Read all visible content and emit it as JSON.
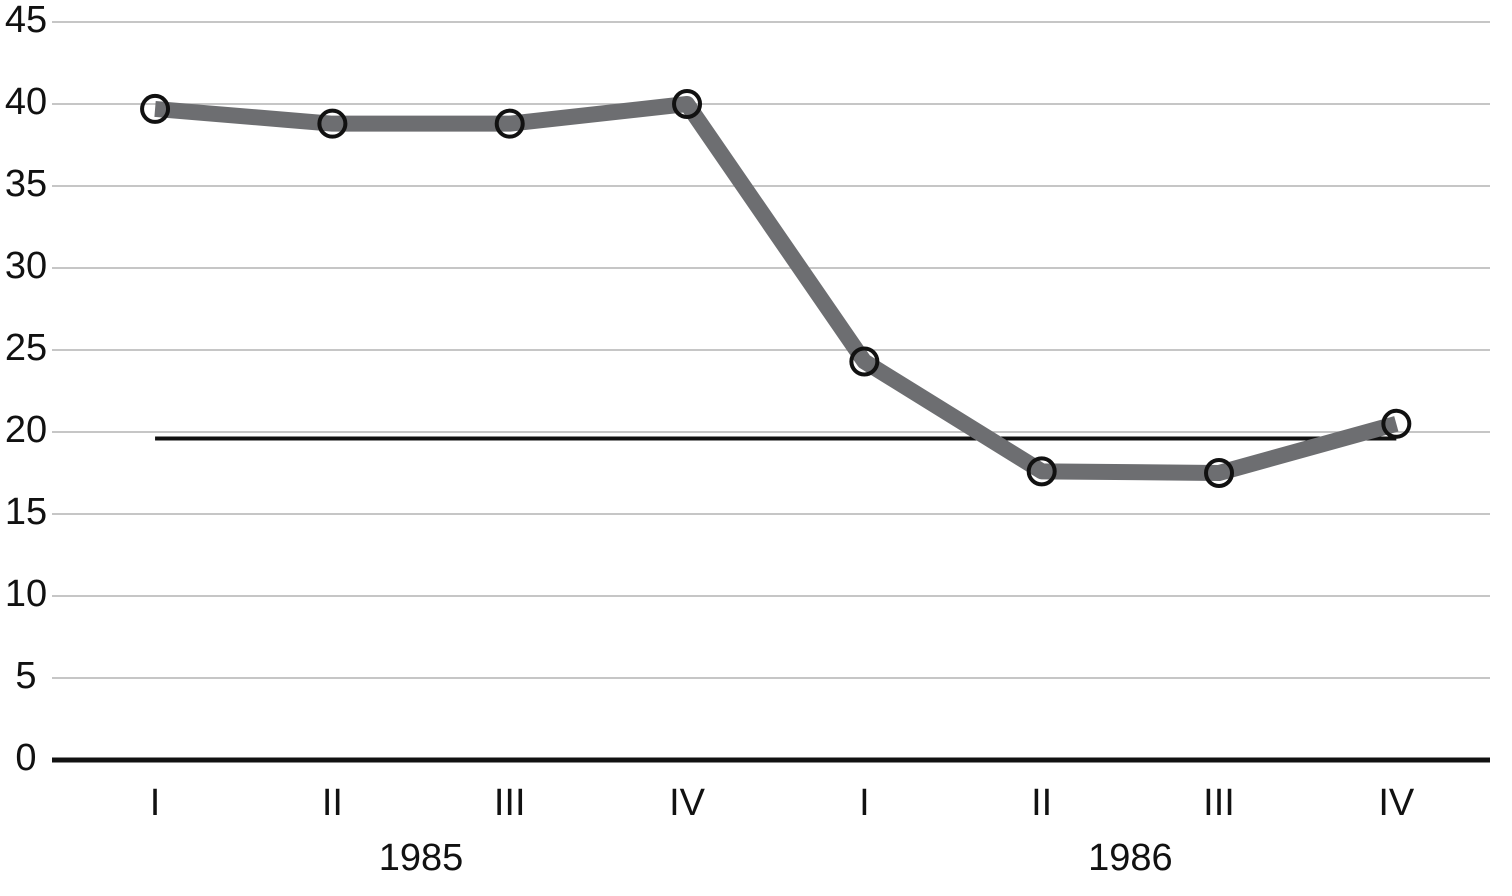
{
  "chart_data": {
    "type": "line",
    "categories": [
      "I",
      "II",
      "III",
      "IV",
      "I",
      "II",
      "III",
      "IV"
    ],
    "x_groups": [
      "1985",
      "1986"
    ],
    "series": [
      {
        "color": "#6d6e71",
        "values": [
          39.7,
          38.8,
          38.8,
          40,
          24.3,
          17.6,
          17.5,
          20.5
        ]
      }
    ],
    "reference_line": 19.6,
    "ylim": [
      0,
      45
    ],
    "yticks": [
      0,
      5,
      10,
      15,
      20,
      25,
      30,
      35,
      40,
      45
    ],
    "grid": true
  }
}
